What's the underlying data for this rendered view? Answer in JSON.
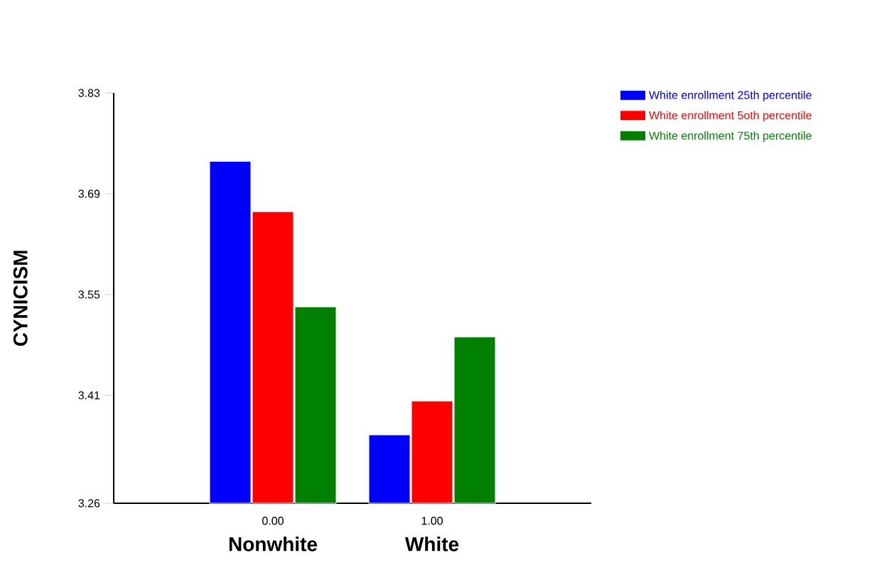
{
  "chart_data": {
    "type": "bar",
    "ylabel": "CYNICISM",
    "categories": [
      "0.00",
      "1.00"
    ],
    "annotations": [
      "Nonwhite",
      "White"
    ],
    "series": [
      {
        "name": "White enrollment 25th percentile",
        "color": "#0000ff",
        "values": [
          3.735,
          3.355
        ]
      },
      {
        "name": "White enrollment 5oth percentile",
        "color": "#ff0000",
        "values": [
          3.665,
          3.402
        ]
      },
      {
        "name": "White enrollment 75th percentile",
        "color": "#008000",
        "values": [
          3.533,
          3.491
        ]
      }
    ],
    "ylim": [
      3.26,
      3.83
    ],
    "yticks": [
      3.26,
      3.41,
      3.55,
      3.69,
      3.83
    ],
    "legend": "top right",
    "grid": false
  }
}
